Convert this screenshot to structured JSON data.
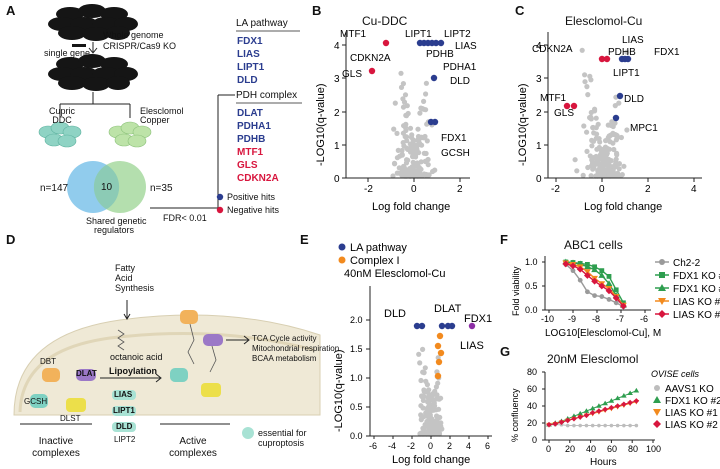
{
  "panels": {
    "A": {
      "label": "A",
      "single_gene": "single gene",
      "crispr_text": [
        "Whole genome",
        "CRISPR/Cas9 KO"
      ],
      "branch_left": [
        "Cupric",
        "DDC"
      ],
      "branch_right": [
        "Elesclomol",
        "Copper"
      ],
      "venn_left_n": "n=147",
      "venn_center_n": "10",
      "venn_right_n": "n=35",
      "shared_label": [
        "Shared genetic",
        "regulators"
      ],
      "fdr": "FDR< 0.01",
      "la_header": "LA pathway",
      "la_genes": [
        "FDX1",
        "LIAS",
        "LIPT1",
        "DLD"
      ],
      "pdh_header": "PDH complex",
      "pdh_genes": [
        {
          "name": "DLAT",
          "hit": "positive"
        },
        {
          "name": "PDHA1",
          "hit": "positive"
        },
        {
          "name": "PDHB",
          "hit": "positive"
        },
        {
          "name": "MTF1",
          "hit": "negative"
        },
        {
          "name": "GLS",
          "hit": "negative"
        },
        {
          "name": "CDKN2A",
          "hit": "negative"
        }
      ],
      "legend": [
        {
          "label": "Positive hits",
          "color": "#2b3d8f"
        },
        {
          "label": "Negative hits",
          "color": "#d8163e"
        }
      ]
    },
    "B": {
      "label": "B",
      "title": "Cu-DDC",
      "xlabel": "Log fold change",
      "ylabel": "-LOG10(q-value)",
      "x_ticks": [
        "-2",
        "0",
        "2"
      ],
      "y_ticks": [
        "0",
        "1",
        "2",
        "3",
        "4"
      ],
      "annotations": [
        "MTF1",
        "CDKN2A",
        "GLS",
        "LIPT1",
        "LIPT2",
        "LIAS",
        "PDHB",
        "PDHA1",
        "DLD",
        "FDX1",
        "GCSH"
      ]
    },
    "C": {
      "label": "C",
      "title": "Elesclomol-Cu",
      "xlabel": "Log fold change",
      "ylabel": "-LOG10(q-value)",
      "x_ticks": [
        "-2",
        "0",
        "2",
        "4"
      ],
      "y_ticks": [
        "0",
        "1",
        "2",
        "3",
        "4"
      ],
      "annotations": [
        "CDKN2A",
        "LIAS",
        "PDHB",
        "FDX1",
        "LIPT1",
        "MTF1",
        "GLS",
        "DLD",
        "MPC1"
      ]
    },
    "D": {
      "label": "D",
      "fas": [
        "Fatty",
        "Acid",
        "Synthesis"
      ],
      "octanoic": "octanoic acid",
      "lipoylation": "Lipoylation",
      "enzymes": [
        "LIAS",
        "LIPT1",
        "DLD"
      ],
      "lipt2": "LIPT2",
      "inactive_proteins": [
        "DBT",
        "DLAT",
        "GCSH",
        "DLST"
      ],
      "inactive_label": [
        "Inactive",
        "complexes"
      ],
      "active_label": [
        "Active",
        "complexes"
      ],
      "outcomes": [
        "TCA Cycle activity",
        "Mitochondrial respiration",
        "BCAA metabolism"
      ],
      "essential_note": [
        "essential for",
        "cuproptosis"
      ]
    },
    "E": {
      "label": "E",
      "legend": [
        {
          "label": "LA  pathway",
          "color": "#2b3d8f"
        },
        {
          "label": "Complex I",
          "color": "#f28a1e"
        }
      ],
      "title": "40nM Elesclomol-Cu",
      "xlabel": "Log fold change",
      "ylabel": "-LOG10(q-value)",
      "x_ticks": [
        "-6",
        "-4",
        "-2",
        "0",
        "2",
        "4",
        "6"
      ],
      "y_ticks": [
        "0.0",
        "0.5",
        "1.0",
        "1.5",
        "2.0"
      ],
      "annotations": [
        "DLD",
        "DLAT",
        "FDX1",
        "LIAS"
      ]
    },
    "F": {
      "label": "F",
      "title": "ABC1 cells",
      "ylabel": "Fold viability",
      "xlabel": "LOG10[Elesclomol-Cu], M",
      "x_ticks": [
        "-10",
        "-9",
        "-8",
        "-7",
        "-6"
      ],
      "y_ticks": [
        "0.0",
        "0.5",
        "1.0"
      ]
    },
    "G": {
      "label": "G",
      "title": "20nM Elesclomol",
      "legend_title": "OVISE cells",
      "ylabel": "% confluency",
      "xlabel": "Hours",
      "x_ticks": [
        "0",
        "20",
        "40",
        "60",
        "80",
        "100"
      ],
      "y_ticks": [
        "0",
        "20",
        "40",
        "60",
        "80"
      ]
    }
  },
  "chart_data": [
    {
      "type": "scatter",
      "panel": "F",
      "title": "ABC1 cells",
      "xlabel": "LOG10[Elesclomol-Cu], M",
      "ylabel": "Fold viability",
      "xlim": [
        -10,
        -6
      ],
      "ylim": [
        0,
        1.1
      ],
      "x": [
        -9.3,
        -9.0,
        -8.7,
        -8.4,
        -8.1,
        -7.8,
        -7.5,
        -7.2,
        -6.9
      ],
      "series": [
        {
          "name": "Ch2-2",
          "color": "#9a9a9a",
          "marker": "circle",
          "values": [
            0.95,
            0.82,
            0.62,
            0.38,
            0.3,
            0.28,
            0.22,
            0.15,
            0.07
          ]
        },
        {
          "name": "FDX1 KO #1",
          "color": "#2e9e4f",
          "marker": "square",
          "values": [
            1.0,
            0.99,
            0.97,
            0.95,
            0.9,
            0.82,
            0.7,
            0.42,
            0.15
          ]
        },
        {
          "name": "FDX1 KO #2",
          "color": "#2e9e4f",
          "marker": "triangle-up",
          "values": [
            1.0,
            0.98,
            0.96,
            0.9,
            0.84,
            0.72,
            0.55,
            0.3,
            0.1
          ]
        },
        {
          "name": "LIAS KO #1",
          "color": "#f28a1e",
          "marker": "triangle-down",
          "values": [
            0.98,
            0.95,
            0.9,
            0.8,
            0.66,
            0.55,
            0.45,
            0.28,
            0.1
          ]
        },
        {
          "name": "LIAS KO #2",
          "color": "#d8163e",
          "marker": "diamond",
          "values": [
            0.96,
            0.92,
            0.85,
            0.72,
            0.6,
            0.5,
            0.4,
            0.25,
            0.08
          ]
        }
      ]
    },
    {
      "type": "line",
      "panel": "G",
      "title": "20nM Elesclomol",
      "xlabel": "Hours",
      "ylabel": "% confluency",
      "xlim": [
        0,
        100
      ],
      "ylim": [
        0,
        80
      ],
      "x": [
        0,
        6,
        12,
        18,
        24,
        30,
        36,
        42,
        48,
        54,
        60,
        66,
        72,
        78,
        84
      ],
      "series": [
        {
          "name": "AAVS1 KO",
          "color": "#bdbdbd",
          "marker": "circle",
          "values": [
            18,
            18,
            18,
            17,
            17,
            17,
            17,
            17,
            17,
            17,
            17,
            17,
            17,
            17,
            17
          ]
        },
        {
          "name": "FDX1 KO #2",
          "color": "#2e9e4f",
          "marker": "triangle-up",
          "values": [
            18,
            20,
            22,
            25,
            28,
            31,
            34,
            37,
            40,
            43,
            46,
            49,
            52,
            55,
            58
          ]
        },
        {
          "name": "LIAS KO #1",
          "color": "#f28a1e",
          "marker": "triangle-down",
          "values": [
            18,
            19,
            21,
            23,
            25,
            27,
            29,
            31,
            33,
            35,
            37,
            39,
            41,
            43,
            45
          ]
        },
        {
          "name": "LIAS KO #2",
          "color": "#d8163e",
          "marker": "diamond",
          "values": [
            18,
            19,
            21,
            23,
            25,
            27,
            29,
            32,
            34,
            36,
            38,
            40,
            42,
            44,
            46
          ]
        }
      ]
    }
  ]
}
